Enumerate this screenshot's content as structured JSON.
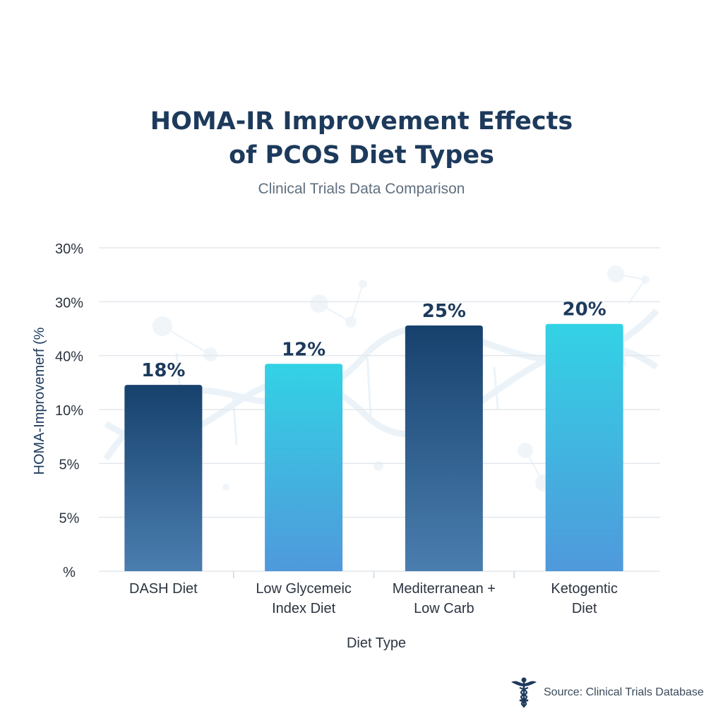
{
  "header": {
    "title_line1": "HOMA-IR Improvement Effects",
    "title_line2": "of PCOS Diet Types",
    "subtitle": "Clinical Trials Data Comparison"
  },
  "footer": {
    "source": "Source: Clinical Trials Database",
    "icon": "caduceus-icon"
  },
  "colors": {
    "title": "#1d3a5c",
    "dark_bar_top": "#17416d",
    "dark_bar_bottom": "#4a7eaf",
    "light_bar_top": "#33d2e5",
    "light_bar_bottom": "#4f99db",
    "grid": "#e3e7ec"
  },
  "chart_data": {
    "type": "bar",
    "categories": [
      [
        "DASH Diet"
      ],
      [
        "Low Glycemeic",
        "Index Diet"
      ],
      [
        "Mediterranean +",
        "Low Carb"
      ],
      [
        "Ketogentic",
        "Diet"
      ]
    ],
    "values": [
      18,
      12,
      25,
      20
    ],
    "value_labels": [
      "18%",
      "12%",
      "25%",
      "20%"
    ],
    "bar_styles": [
      "dark",
      "light",
      "dark",
      "light"
    ],
    "bar_levels": [
      0.345,
      0.384,
      0.455,
      0.458
    ],
    "ylabel": "HOMA-Improvemerf (%",
    "xlabel": "Diet Type",
    "y_ticks": [
      "30%",
      "30%",
      "40%",
      "10%",
      "5%",
      "5%",
      "%"
    ],
    "grid": true,
    "legend": "none"
  }
}
